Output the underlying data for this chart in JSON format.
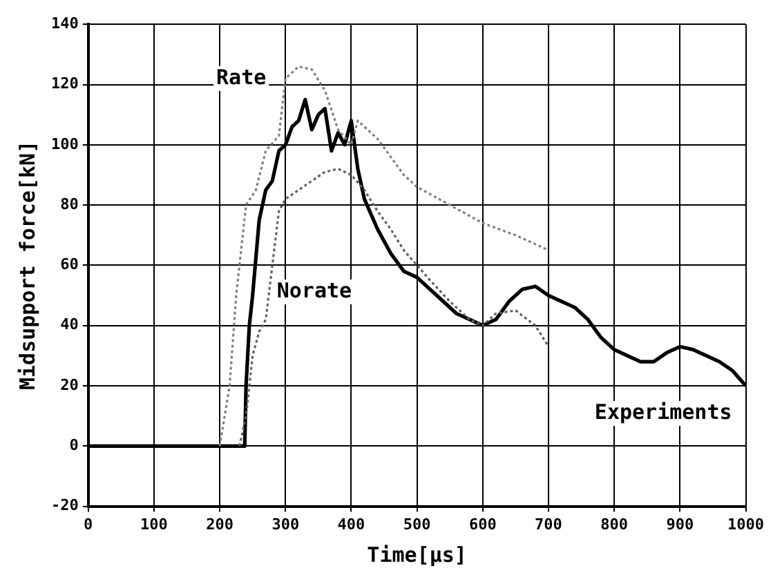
{
  "chart_data": {
    "type": "line",
    "xlabel": "Time[μs]",
    "ylabel": "Midsupport force[kN]",
    "xlim": [
      0,
      1000
    ],
    "ylim": [
      -20,
      140
    ],
    "xticks": [
      0,
      100,
      200,
      300,
      400,
      500,
      600,
      700,
      800,
      900,
      1000
    ],
    "yticks": [
      -20,
      0,
      20,
      40,
      60,
      80,
      100,
      120,
      140
    ],
    "grid": true,
    "legend": false,
    "marker": "none",
    "series": [
      {
        "name": "Rate",
        "color": "#808080",
        "line_style": "dotted",
        "x": [
          200,
          215,
          225,
          240,
          255,
          270,
          290,
          300,
          320,
          340,
          360,
          380,
          400,
          410,
          420,
          440,
          460,
          480,
          500,
          550,
          600,
          650,
          700
        ],
        "values": [
          0,
          20,
          50,
          80,
          85,
          98,
          103,
          122,
          126,
          125,
          118,
          105,
          100,
          108,
          106,
          102,
          96,
          90,
          86,
          80,
          74,
          70,
          65
        ]
      },
      {
        "name": "Norate",
        "color": "#606060",
        "line_style": "dotted",
        "x": [
          230,
          240,
          250,
          260,
          270,
          280,
          290,
          300,
          320,
          340,
          360,
          380,
          400,
          420,
          440,
          460,
          480,
          500,
          520,
          550,
          580,
          600,
          620,
          650,
          680,
          700
        ],
        "values": [
          0,
          10,
          30,
          38,
          42,
          60,
          78,
          82,
          85,
          88,
          91,
          92,
          90,
          85,
          78,
          72,
          65,
          60,
          55,
          48,
          42,
          40,
          44,
          45,
          40,
          33
        ]
      },
      {
        "name": "Experiments",
        "color": "#000000",
        "x": [
          0,
          200,
          230,
          238,
          240,
          245,
          250,
          260,
          270,
          280,
          290,
          300,
          310,
          320,
          330,
          340,
          350,
          360,
          370,
          380,
          390,
          400,
          410,
          420,
          440,
          460,
          480,
          500,
          520,
          540,
          560,
          580,
          600,
          620,
          640,
          660,
          680,
          700,
          720,
          740,
          760,
          780,
          800,
          820,
          840,
          860,
          880,
          900,
          920,
          940,
          960,
          980,
          1000
        ],
        "values": [
          0,
          0,
          0,
          0,
          20,
          40,
          50,
          75,
          85,
          88,
          98,
          100,
          106,
          108,
          115,
          105,
          110,
          112,
          98,
          104,
          100,
          108,
          92,
          82,
          72,
          64,
          58,
          56,
          52,
          48,
          44,
          42,
          40,
          42,
          48,
          52,
          53,
          50,
          48,
          46,
          42,
          36,
          32,
          30,
          28,
          28,
          31,
          33,
          32,
          30,
          28,
          25,
          20
        ]
      }
    ]
  }
}
